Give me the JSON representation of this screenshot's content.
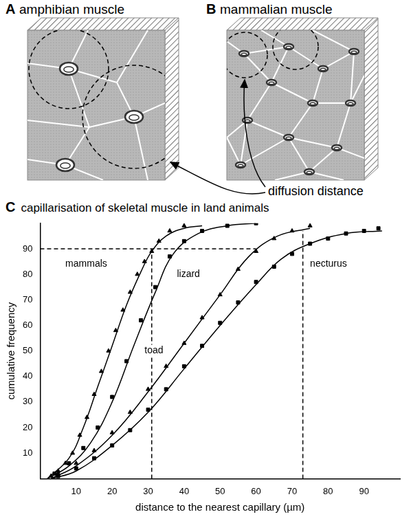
{
  "panels": [
    {
      "letter": "A",
      "title": "amphibian muscle"
    },
    {
      "letter": "B",
      "title": "mammalian muscle"
    },
    {
      "letter": "C"
    }
  ],
  "diagram": {
    "label": "diffusion distance"
  },
  "chart_data": {
    "type": "scatter",
    "title": "capillarisation of skeletal muscle in land animals",
    "x_label": "distance to the nearest capillary (µm)",
    "y_label": "cumulative frequency",
    "xlim": [
      0,
      100
    ],
    "xticks": [
      10,
      20,
      30,
      40,
      50,
      60,
      70,
      80,
      90
    ],
    "ylim": [
      0,
      100
    ],
    "yticks": [
      10,
      20,
      30,
      40,
      50,
      60,
      70,
      80,
      90
    ],
    "grid": false,
    "series": [
      {
        "type": "scatter",
        "marker": "triangle",
        "color": "#000000",
        "x": [
          3,
          5,
          7,
          9,
          11,
          13,
          15,
          17,
          19,
          21,
          23,
          25,
          27,
          29,
          31,
          33,
          36,
          40
        ],
        "values": [
          1,
          3,
          6,
          10,
          17,
          24,
          33,
          42,
          50,
          58,
          66,
          73,
          80,
          85,
          89,
          93,
          97,
          99
        ]
      },
      {
        "type": "scatter",
        "marker": "square",
        "color": "#000000",
        "x": [
          4,
          8,
          12,
          16,
          20,
          24,
          28,
          32,
          36,
          40,
          45,
          52,
          60
        ],
        "values": [
          2,
          6,
          12,
          20,
          32,
          46,
          62,
          75,
          87,
          93,
          97,
          99,
          100
        ]
      },
      {
        "type": "scatter",
        "marker": "triangle",
        "color": "#000000",
        "x": [
          5,
          10,
          15,
          20,
          25,
          30,
          35,
          40,
          45,
          50,
          55,
          60,
          65,
          70,
          75
        ],
        "values": [
          2,
          6,
          11,
          18,
          26,
          35,
          44,
          53,
          63,
          72,
          82,
          89,
          94,
          97,
          99
        ]
      },
      {
        "type": "scatter",
        "marker": "square",
        "color": "#000000",
        "x": [
          5,
          10,
          15,
          20,
          25,
          30,
          35,
          40,
          45,
          50,
          55,
          60,
          65,
          70,
          75,
          80,
          85,
          90,
          94
        ],
        "values": [
          1,
          4,
          8,
          13,
          19,
          27,
          35,
          44,
          52,
          61,
          69,
          77,
          83,
          88,
          92,
          94,
          96,
          97,
          98
        ]
      },
      {
        "type": "line",
        "line_style": "solid",
        "color": "#000000",
        "x": [
          2,
          8,
          12,
          16,
          20,
          24,
          28,
          31,
          35,
          40,
          45
        ],
        "values": [
          0,
          8,
          20,
          36,
          52,
          68,
          81,
          89,
          95,
          98,
          99
        ]
      },
      {
        "type": "line",
        "line_style": "solid",
        "color": "#000000",
        "x": [
          2,
          8,
          14,
          20,
          26,
          32,
          37,
          44,
          52,
          60
        ],
        "values": [
          0,
          5,
          14,
          30,
          52,
          73,
          88,
          96,
          99,
          100
        ]
      },
      {
        "type": "line",
        "line_style": "solid",
        "color": "#000000",
        "x": [
          3,
          10,
          20,
          30,
          40,
          50,
          58,
          66,
          75
        ],
        "values": [
          0,
          5,
          17,
          34,
          53,
          72,
          87,
          95,
          98
        ]
      },
      {
        "type": "line",
        "line_style": "solid",
        "color": "#000000",
        "x": [
          3,
          10,
          20,
          30,
          40,
          50,
          60,
          67,
          75,
          85,
          95
        ],
        "values": [
          0,
          3,
          13,
          26,
          43,
          60,
          76,
          86,
          92,
          96,
          97
        ]
      },
      {
        "type": "line",
        "line_style": "dashed",
        "color": "#000000",
        "x": [
          0,
          60
        ],
        "values": [
          90,
          90
        ]
      },
      {
        "type": "line",
        "line_style": "dashed",
        "color": "#000000",
        "x": [
          31,
          31
        ],
        "values": [
          0,
          90
        ]
      },
      {
        "type": "line",
        "line_style": "dashed",
        "color": "#000000",
        "x": [
          73,
          73
        ],
        "values": [
          0,
          97
        ]
      }
    ],
    "annotations": [
      {
        "text": "mammals",
        "x": 7,
        "y": 84
      },
      {
        "text": "lizard",
        "x": 38,
        "y": 80
      },
      {
        "text": "toad",
        "x": 29,
        "y": 50
      },
      {
        "text": "necturus",
        "x": 75,
        "y": 84
      }
    ]
  }
}
